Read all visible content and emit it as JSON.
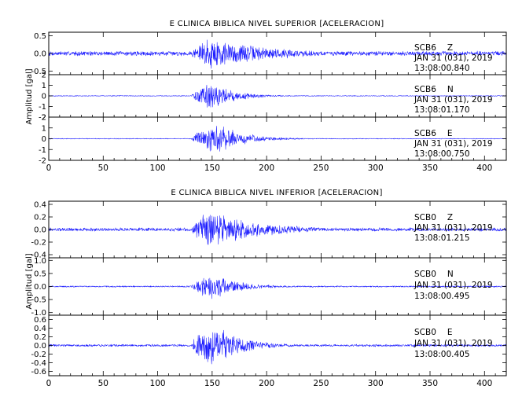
{
  "chart_data": [
    {
      "type": "line",
      "title": "E CLINICA BIBLICA NIVEL SUPERIOR [ACELERACION]",
      "ylabel": "Amplitud [gal]",
      "xlim": [
        0,
        420
      ],
      "x_ticks": [
        "0",
        "50",
        "100",
        "150",
        "200",
        "250",
        "300",
        "350",
        "400"
      ],
      "colors": {
        "trace": "#1a1aff"
      },
      "panels": [
        {
          "channel": "SCB6 Z",
          "label_station": "SCB6",
          "label_component": "Z",
          "label_date": "JAN 31 (031), 2019",
          "label_time": "13:08:00.840",
          "ylim": [
            -0.6,
            0.6
          ],
          "y_ticks": [
            "0.5",
            "0.0",
            "-0.5"
          ],
          "envelope": {
            "noise": 0.07,
            "onset": 131,
            "peak_time": 147,
            "peak": 0.5,
            "decay_seconds": 55
          }
        },
        {
          "channel": "SCB6 N",
          "label_station": "SCB6",
          "label_component": "N",
          "label_date": "JAN 31 (031), 2019",
          "label_time": "13:08:01.170",
          "ylim": [
            -2,
            2
          ],
          "y_ticks": [
            "2",
            "1",
            "0",
            "-1",
            "-2"
          ],
          "envelope": {
            "noise": 0.04,
            "onset": 131,
            "peak_time": 150,
            "peak": 1.35,
            "decay_seconds": 22
          }
        },
        {
          "channel": "SCB6 E",
          "label_station": "SCB6",
          "label_component": "E",
          "label_date": "JAN 31 (031), 2019",
          "label_time": "13:08:00.750",
          "ylim": [
            -2,
            2
          ],
          "y_ticks": [
            "2",
            "1",
            "0",
            "-1",
            "-2"
          ],
          "envelope": {
            "noise": 0.04,
            "onset": 131,
            "peak_time": 155,
            "peak": 1.5,
            "decay_seconds": 24
          }
        }
      ]
    },
    {
      "type": "line",
      "title": "E CLINICA BIBLICA NIVEL INFERIOR [ACELERACION]",
      "ylabel": "Amplitud [gal]",
      "xlim": [
        0,
        420
      ],
      "x_ticks": [
        "0",
        "50",
        "100",
        "150",
        "200",
        "250",
        "300",
        "350",
        "400"
      ],
      "colors": {
        "trace": "#1a1aff"
      },
      "panels": [
        {
          "channel": "SCB0 Z",
          "label_station": "SCB0",
          "label_component": "Z",
          "label_date": "JAN 31 (031), 2019",
          "label_time": "13:08:01.215",
          "ylim": [
            -0.45,
            0.45
          ],
          "y_ticks": [
            "0.4",
            "0.2",
            "0.0",
            "-0.2",
            "-0.4"
          ],
          "envelope": {
            "noise": 0.03,
            "onset": 131,
            "peak_time": 148,
            "peak": 0.33,
            "decay_seconds": 45
          }
        },
        {
          "channel": "SCB0 N",
          "label_station": "SCB0",
          "label_component": "N",
          "label_date": "JAN 31 (031), 2019",
          "label_time": "13:08:00.495",
          "ylim": [
            -1.1,
            1.1
          ],
          "y_ticks": [
            "1.0",
            "0.5",
            "0.0",
            "-0.5",
            "-1.0"
          ],
          "envelope": {
            "noise": 0.03,
            "onset": 131,
            "peak_time": 150,
            "peak": 0.55,
            "decay_seconds": 25
          }
        },
        {
          "channel": "SCB0 E",
          "label_station": "SCB0",
          "label_component": "E",
          "label_date": "JAN 31 (031), 2019",
          "label_time": "13:08:00.405",
          "ylim": [
            -0.7,
            0.7
          ],
          "y_ticks": [
            "0.6",
            "0.4",
            "0.2",
            "0.0",
            "-0.2",
            "-0.4",
            "-0.6"
          ],
          "envelope": {
            "noise": 0.03,
            "onset": 131,
            "peak_time": 150,
            "peak": 0.55,
            "decay_seconds": 26
          }
        }
      ]
    }
  ]
}
